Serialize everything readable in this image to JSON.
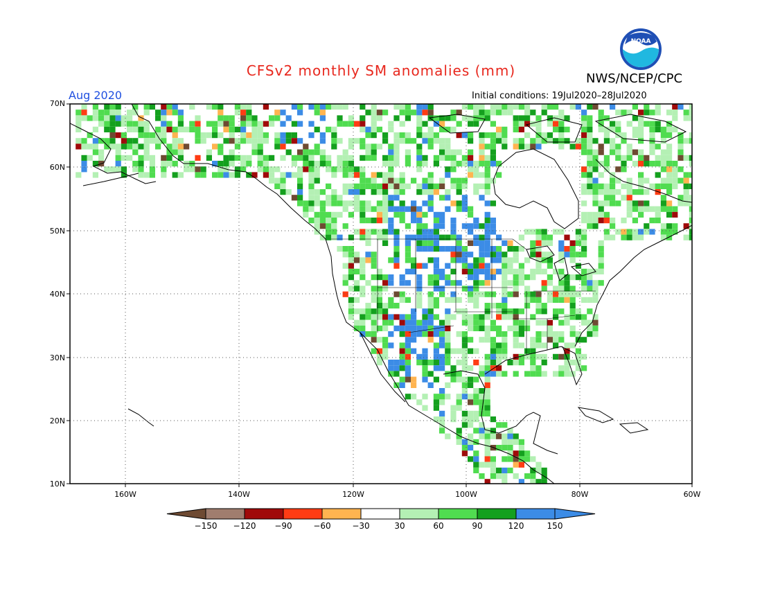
{
  "title": "CFSv2 monthly SM anomalies (mm)",
  "agency": "NWS/NCEP/CPC",
  "logo": {
    "name": "noaa-logo",
    "text": "NOAA"
  },
  "month": "Aug 2020",
  "initial_conditions": "Initial conditions: 19Jul2020–28Jul2020",
  "lat_labels": [
    "70N",
    "60N",
    "50N",
    "40N",
    "30N",
    "20N",
    "10N"
  ],
  "lon_labels": [
    "160W",
    "140W",
    "120W",
    "100W",
    "80W",
    "60W"
  ],
  "colorbar": {
    "labels": [
      "−150",
      "−120",
      "−90",
      "−60",
      "−30",
      "30",
      "60",
      "90",
      "120",
      "150"
    ],
    "colors": [
      "#6e4a32",
      "#a07d6e",
      "#a00a0a",
      "#ff3c14",
      "#ffb450",
      "#ffffff",
      "#b4f0b4",
      "#50dc50",
      "#14a01e",
      "#3c8ce6",
      "#3c8ce6"
    ]
  },
  "colors": {
    "title": "#e8281e",
    "month": "#2050e0",
    "coast": "#000000",
    "grid": "#555555"
  }
}
